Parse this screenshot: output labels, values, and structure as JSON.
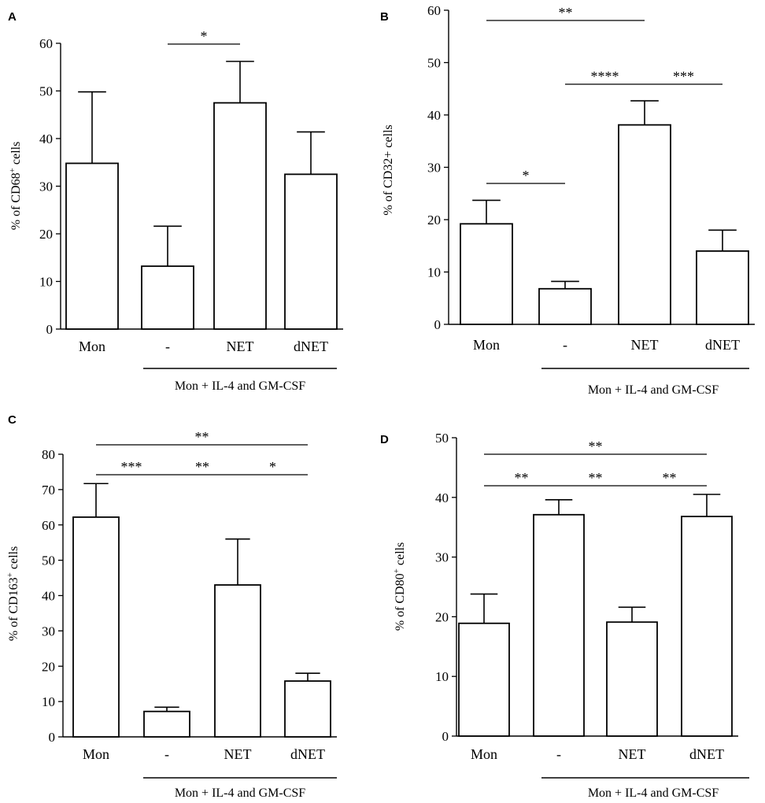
{
  "chart_data": [
    {
      "panel": "A",
      "type": "bar",
      "ylabel_main": "% of CD68",
      "ylabel_sup": "+",
      "ylabel_end": " cells",
      "categories": [
        "Mon",
        "-",
        "NET",
        "dNET"
      ],
      "values": [
        34.8,
        13.2,
        47.5,
        32.5
      ],
      "errors": [
        15.0,
        8.4,
        8.7,
        8.9
      ],
      "ylim": [
        0,
        60
      ],
      "yticks": [
        "0",
        "10",
        "20",
        "30",
        "40",
        "50",
        "60"
      ],
      "group_label": "Mon + IL-4 and GM-CSF",
      "significance": [
        {
          "from": 1,
          "to": 2,
          "label": "*"
        }
      ]
    },
    {
      "panel": "B",
      "type": "bar",
      "ylabel_main": "% of CD32+ cells",
      "ylabel_sup": "",
      "ylabel_end": "",
      "categories": [
        "Mon",
        "-",
        "NET",
        "dNET"
      ],
      "values": [
        19.2,
        6.8,
        38.1,
        14.0
      ],
      "errors": [
        4.5,
        1.4,
        4.6,
        4.0
      ],
      "ylim": [
        0,
        60
      ],
      "yticks": [
        "0",
        "10",
        "20",
        "30",
        "40",
        "50",
        "60"
      ],
      "group_label": "Mon + IL-4 and GM-CSF",
      "significance": [
        {
          "from": 0,
          "to": 2,
          "label": "**"
        },
        {
          "from": 1,
          "to": 2,
          "label": "****"
        },
        {
          "from": 2,
          "to": 3,
          "label": "***"
        },
        {
          "from": 0,
          "to": 1,
          "label": "*"
        }
      ]
    },
    {
      "panel": "C",
      "type": "bar",
      "ylabel_main": "% of CD163",
      "ylabel_sup": "+",
      "ylabel_end": " cells",
      "categories": [
        "Mon",
        "-",
        "NET",
        "dNET"
      ],
      "values": [
        62.2,
        7.2,
        43.0,
        15.8
      ],
      "errors": [
        9.5,
        1.2,
        13.0,
        2.2
      ],
      "ylim": [
        0,
        80
      ],
      "yticks": [
        "0",
        "10",
        "20",
        "30",
        "40",
        "50",
        "60",
        "70",
        "80"
      ],
      "group_label": "Mon + IL-4 and GM-CSF",
      "significance": [
        {
          "from": 0,
          "to": 3,
          "label": "**"
        },
        {
          "from": 0,
          "to": 1,
          "label": "***"
        },
        {
          "from": 1,
          "to": 2,
          "label": "**"
        },
        {
          "from": 2,
          "to": 3,
          "label": "*"
        }
      ]
    },
    {
      "panel": "D",
      "type": "bar",
      "ylabel_main": "% of CD80",
      "ylabel_sup": "+",
      "ylabel_end": " cells",
      "categories": [
        "Mon",
        "-",
        "NET",
        "dNET"
      ],
      "values": [
        18.9,
        37.1,
        19.1,
        36.8
      ],
      "errors": [
        4.9,
        2.5,
        2.5,
        3.7
      ],
      "ylim": [
        0,
        50
      ],
      "yticks": [
        "0",
        "10",
        "20",
        "30",
        "40",
        "50"
      ],
      "group_label": "Mon + IL-4 and GM-CSF",
      "significance": [
        {
          "from": 0,
          "to": 3,
          "label": "**"
        },
        {
          "from": 0,
          "to": 1,
          "label": "**"
        },
        {
          "from": 1,
          "to": 2,
          "label": "**"
        },
        {
          "from": 2,
          "to": 3,
          "label": "**"
        }
      ]
    }
  ]
}
